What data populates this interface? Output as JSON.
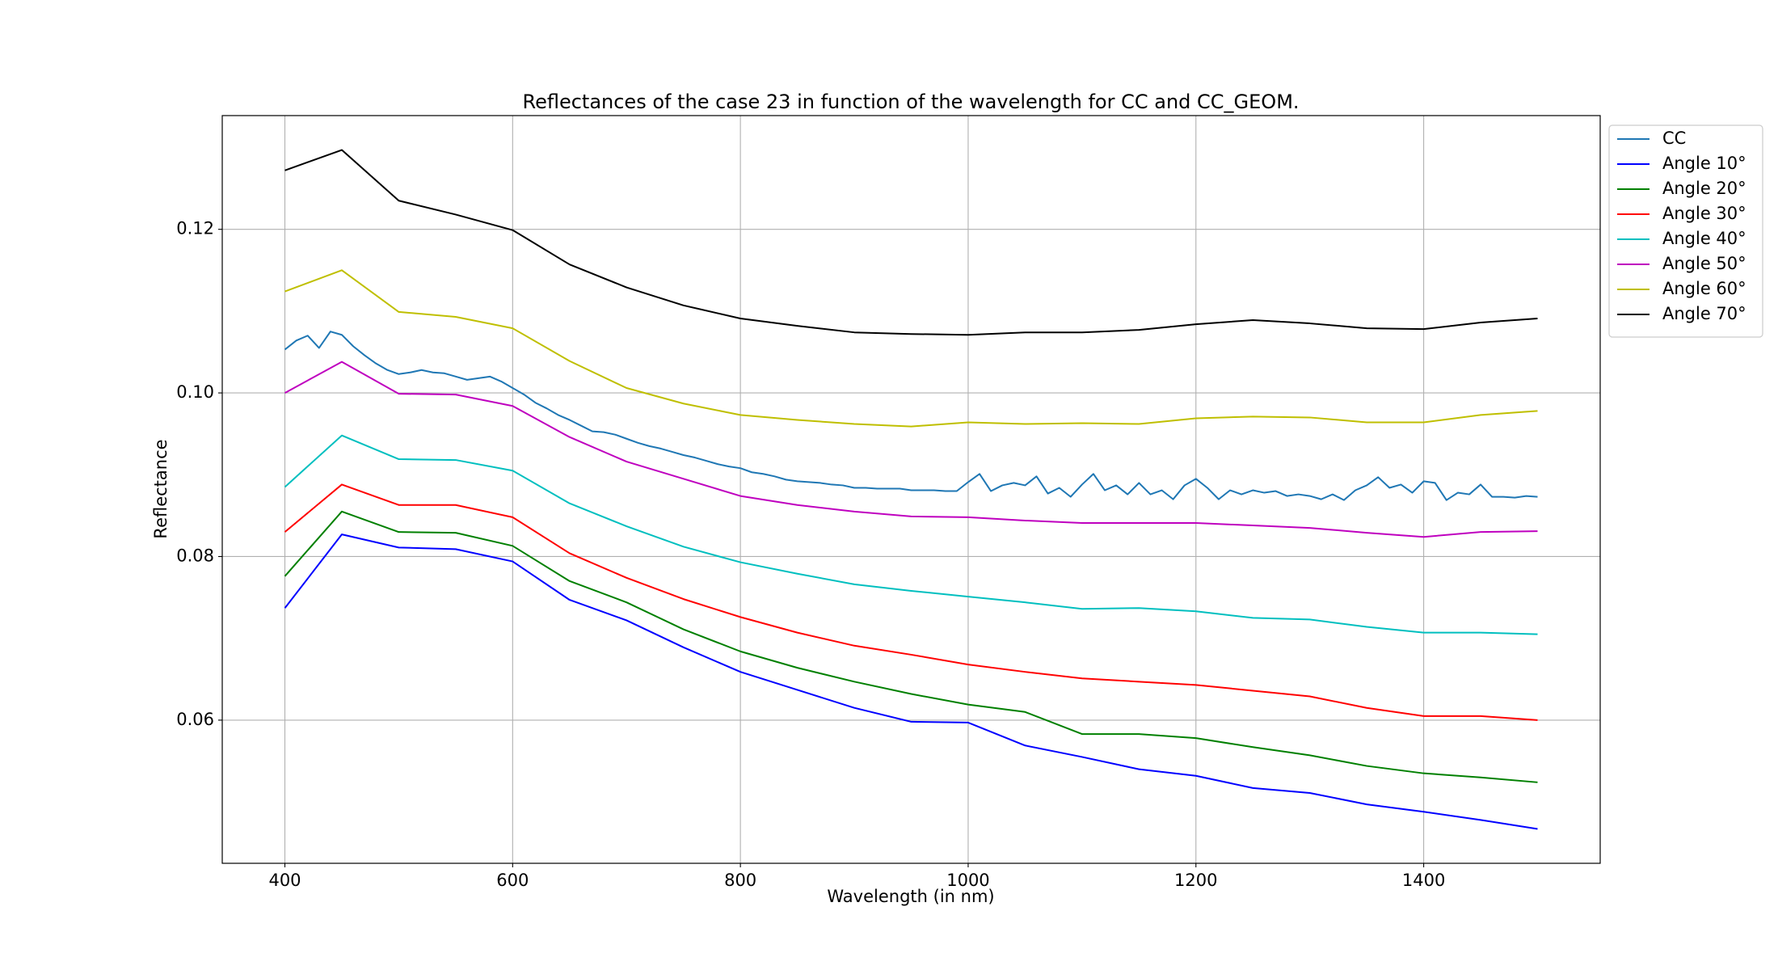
{
  "chart_data": {
    "type": "line",
    "title": "Reflectances of the case 23 in function of the wavelength for CC and CC_GEOM.",
    "x_label": "Wavelength (in nm)",
    "y_label": "Reflectance",
    "xlim": [
      345,
      1555
    ],
    "ylim": [
      0.0425,
      0.1339
    ],
    "xticks": [
      400,
      600,
      800,
      1000,
      1200,
      1400
    ],
    "yticks": [
      0.06,
      0.08,
      {
        "value": 0.1,
        "label": "0.10"
      },
      0.12
    ],
    "grid": true,
    "legend": "outside upper right",
    "series": [
      {
        "name": "CC",
        "color": "#1f77b4",
        "x": [
          400,
          410,
          420,
          430,
          440,
          450,
          460,
          470,
          480,
          490,
          500,
          510,
          520,
          530,
          540,
          550,
          560,
          570,
          580,
          590,
          600,
          610,
          620,
          630,
          640,
          650,
          660,
          670,
          680,
          690,
          700,
          710,
          720,
          730,
          740,
          750,
          760,
          770,
          780,
          790,
          800,
          810,
          820,
          830,
          840,
          850,
          860,
          870,
          880,
          890,
          900,
          910,
          920,
          930,
          940,
          950,
          960,
          970,
          980,
          990,
          1000,
          1010,
          1020,
          1030,
          1040,
          1050,
          1060,
          1070,
          1080,
          1090,
          1100,
          1110,
          1120,
          1130,
          1140,
          1150,
          1160,
          1170,
          1180,
          1190,
          1200,
          1210,
          1220,
          1230,
          1240,
          1250,
          1260,
          1270,
          1280,
          1290,
          1300,
          1310,
          1320,
          1330,
          1340,
          1350,
          1360,
          1370,
          1380,
          1390,
          1400,
          1410,
          1420,
          1430,
          1440,
          1450,
          1460,
          1470,
          1480,
          1490,
          1500
        ],
        "values": [
          0.1053,
          0.1064,
          0.107,
          0.1055,
          0.1075,
          0.1071,
          0.1057,
          0.1046,
          0.1036,
          0.1028,
          0.1023,
          0.1025,
          0.1028,
          0.1025,
          0.1024,
          0.102,
          0.1016,
          0.1018,
          0.102,
          0.1014,
          0.1006,
          0.0998,
          0.0988,
          0.0981,
          0.0973,
          0.0967,
          0.096,
          0.0953,
          0.0952,
          0.0949,
          0.0944,
          0.0939,
          0.0935,
          0.0932,
          0.0928,
          0.0924,
          0.0921,
          0.0917,
          0.0913,
          0.091,
          0.0908,
          0.0903,
          0.0901,
          0.0898,
          0.0894,
          0.0892,
          0.0891,
          0.089,
          0.0888,
          0.0887,
          0.0884,
          0.0884,
          0.0883,
          0.0883,
          0.0883,
          0.0881,
          0.0881,
          0.0881,
          0.088,
          0.088,
          0.0891,
          0.0901,
          0.088,
          0.0887,
          0.089,
          0.0887,
          0.0898,
          0.0877,
          0.0884,
          0.0873,
          0.0888,
          0.0901,
          0.0881,
          0.0887,
          0.0876,
          0.089,
          0.0876,
          0.0881,
          0.087,
          0.0887,
          0.0895,
          0.0884,
          0.087,
          0.0881,
          0.0876,
          0.0881,
          0.0878,
          0.088,
          0.0874,
          0.0876,
          0.0874,
          0.087,
          0.0876,
          0.0869,
          0.0881,
          0.0887,
          0.0897,
          0.0884,
          0.0888,
          0.0878,
          0.0892,
          0.089,
          0.0869,
          0.0878,
          0.0876,
          0.0888,
          0.0873,
          0.0873,
          0.0872,
          0.0874,
          0.0873
        ]
      },
      {
        "name": "Angle 10°",
        "color": "#0000ff",
        "x": [
          400,
          450,
          500,
          550,
          600,
          650,
          700,
          750,
          800,
          850,
          900,
          950,
          1000,
          1050,
          1100,
          1150,
          1200,
          1250,
          1300,
          1350,
          1400,
          1450,
          1500
        ],
        "values": [
          0.0737,
          0.0827,
          0.0811,
          0.0809,
          0.0794,
          0.0747,
          0.0722,
          0.0689,
          0.0659,
          0.0637,
          0.0615,
          0.0598,
          0.0597,
          0.0569,
          0.0555,
          0.054,
          0.0532,
          0.0517,
          0.0511,
          0.0497,
          0.0488,
          0.0478,
          0.0467
        ]
      },
      {
        "name": "Angle 20°",
        "color": "#008000",
        "x": [
          400,
          450,
          500,
          550,
          600,
          650,
          700,
          750,
          800,
          850,
          900,
          950,
          1000,
          1050,
          1100,
          1150,
          1200,
          1250,
          1300,
          1350,
          1400,
          1450,
          1500
        ],
        "values": [
          0.0776,
          0.0855,
          0.083,
          0.0829,
          0.0813,
          0.077,
          0.0744,
          0.0711,
          0.0684,
          0.0664,
          0.0647,
          0.0632,
          0.0619,
          0.061,
          0.0583,
          0.0583,
          0.0578,
          0.0567,
          0.0557,
          0.0544,
          0.0535,
          0.053,
          0.0524
        ]
      },
      {
        "name": "Angle 30°",
        "color": "#ff0000",
        "x": [
          400,
          450,
          500,
          550,
          600,
          650,
          700,
          750,
          800,
          850,
          900,
          950,
          1000,
          1050,
          1100,
          1150,
          1200,
          1250,
          1300,
          1350,
          1400,
          1450,
          1500
        ],
        "values": [
          0.083,
          0.0888,
          0.0863,
          0.0863,
          0.0848,
          0.0804,
          0.0774,
          0.0748,
          0.0726,
          0.0707,
          0.0691,
          0.068,
          0.0668,
          0.0659,
          0.0651,
          0.0647,
          0.0643,
          0.0636,
          0.0629,
          0.0615,
          0.0605,
          0.0605,
          0.06
        ]
      },
      {
        "name": "Angle 40°",
        "color": "#00bfbf",
        "x": [
          400,
          450,
          500,
          550,
          600,
          650,
          700,
          750,
          800,
          850,
          900,
          950,
          1000,
          1050,
          1100,
          1150,
          1200,
          1250,
          1300,
          1350,
          1400,
          1450,
          1500
        ],
        "values": [
          0.0885,
          0.0948,
          0.0919,
          0.0918,
          0.0905,
          0.0865,
          0.0837,
          0.0812,
          0.0793,
          0.0779,
          0.0766,
          0.0758,
          0.0751,
          0.0744,
          0.0736,
          0.0737,
          0.0733,
          0.0725,
          0.0723,
          0.0714,
          0.0707,
          0.0707,
          0.0705
        ]
      },
      {
        "name": "Angle 50°",
        "color": "#bf00bf",
        "x": [
          400,
          450,
          500,
          550,
          600,
          650,
          700,
          750,
          800,
          850,
          900,
          950,
          1000,
          1050,
          1100,
          1150,
          1200,
          1250,
          1300,
          1350,
          1400,
          1450,
          1500
        ],
        "values": [
          0.1,
          0.1038,
          0.0999,
          0.0998,
          0.0984,
          0.0946,
          0.0916,
          0.0895,
          0.0874,
          0.0863,
          0.0855,
          0.0849,
          0.0848,
          0.0844,
          0.0841,
          0.0841,
          0.0841,
          0.0838,
          0.0835,
          0.0829,
          0.0824,
          0.083,
          0.0831
        ]
      },
      {
        "name": "Angle 60°",
        "color": "#bfbf00",
        "x": [
          400,
          450,
          500,
          550,
          600,
          650,
          700,
          750,
          800,
          850,
          900,
          950,
          1000,
          1050,
          1100,
          1150,
          1200,
          1250,
          1300,
          1350,
          1400,
          1450,
          1500
        ],
        "values": [
          0.1124,
          0.115,
          0.1099,
          0.1093,
          0.1079,
          0.1039,
          0.1006,
          0.0987,
          0.0973,
          0.0967,
          0.0962,
          0.0959,
          0.0964,
          0.0962,
          0.0963,
          0.0962,
          0.0969,
          0.0971,
          0.097,
          0.0964,
          0.0964,
          0.0973,
          0.0978
        ]
      },
      {
        "name": "Angle 70°",
        "color": "#000000",
        "x": [
          400,
          450,
          500,
          550,
          600,
          650,
          700,
          750,
          800,
          850,
          900,
          950,
          1000,
          1050,
          1100,
          1150,
          1200,
          1250,
          1300,
          1350,
          1400,
          1450,
          1500
        ],
        "values": [
          0.1272,
          0.1297,
          0.1235,
          0.1218,
          0.1199,
          0.1157,
          0.1129,
          0.1107,
          0.1091,
          0.1082,
          0.1074,
          0.1072,
          0.1071,
          0.1074,
          0.1074,
          0.1077,
          0.1084,
          0.1089,
          0.1085,
          0.1079,
          0.1078,
          0.1086,
          0.1091
        ]
      }
    ]
  }
}
